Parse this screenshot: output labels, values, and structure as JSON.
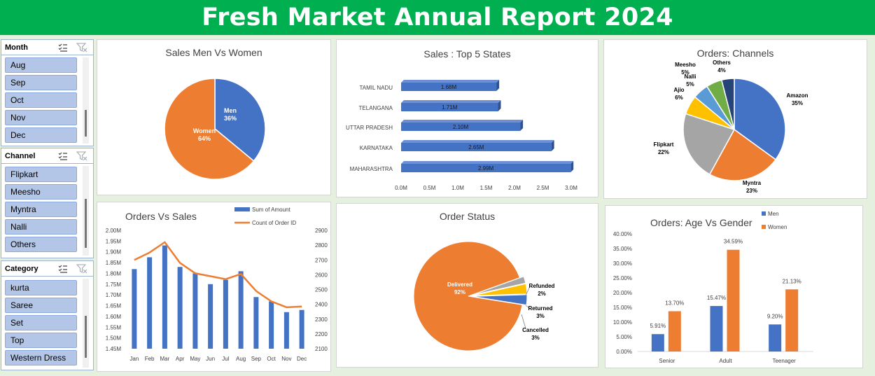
{
  "banner": {
    "title": "Fresh Market Annual Report 2024"
  },
  "slicers": {
    "month": {
      "title": "Month",
      "items": [
        "Aug",
        "Sep",
        "Oct",
        "Nov",
        "Dec"
      ]
    },
    "channel": {
      "title": "Channel",
      "items": [
        "Flipkart",
        "Meesho",
        "Myntra",
        "Nalli",
        "Others"
      ]
    },
    "category": {
      "title": "Category",
      "items": [
        "kurta",
        "Saree",
        "Set",
        "Top",
        "Western Dress"
      ]
    }
  },
  "colors": {
    "blue": "#4472c4",
    "orange": "#ed7d31",
    "gray": "#a5a5a5",
    "yellow": "#ffc000",
    "lightblue": "#5b9bd5",
    "green": "#70ad47",
    "navy": "#264478",
    "banner": "#00b050"
  },
  "chart_data": [
    {
      "id": "men-women",
      "type": "pie",
      "title": "Sales Men Vs Women",
      "slices": [
        {
          "label": "Men",
          "value_label": "36%",
          "value": 36
        },
        {
          "label": "Women",
          "value_label": "64%",
          "value": 64
        }
      ]
    },
    {
      "id": "top-states",
      "type": "bar",
      "orientation": "horizontal",
      "title": "Sales : Top 5 States",
      "categories": [
        "TAMIL NADU",
        "TELANGANA",
        "UTTAR PRADESH",
        "KARNATAKA",
        "MAHARASHTRA"
      ],
      "values": [
        1.68,
        1.71,
        2.1,
        2.65,
        2.99
      ],
      "value_labels": [
        "1.68M",
        "1.71M",
        "2.10M",
        "2.65M",
        "2.99M"
      ],
      "xticks": [
        "0.0M",
        "0.5M",
        "1.0M",
        "1.5M",
        "2.0M",
        "2.5M",
        "3.0M"
      ],
      "xlim": [
        0,
        3.0
      ]
    },
    {
      "id": "channels",
      "type": "pie",
      "title": "Orders: Channels",
      "slices": [
        {
          "label": "Amazon",
          "value_label": "35%",
          "value": 35
        },
        {
          "label": "Myntra",
          "value_label": "23%",
          "value": 23
        },
        {
          "label": "Flipkart",
          "value_label": "22%",
          "value": 22
        },
        {
          "label": "Ajio",
          "value_label": "6%",
          "value": 6
        },
        {
          "label": "Nalli",
          "value_label": "5%",
          "value": 5
        },
        {
          "label": "Meesho",
          "value_label": "5%",
          "value": 5
        },
        {
          "label": "Others",
          "value_label": "4%",
          "value": 4
        }
      ]
    },
    {
      "id": "orders-sales",
      "type": "bar",
      "title": "Orders Vs Sales",
      "categories": [
        "Jan",
        "Feb",
        "Mar",
        "Apr",
        "May",
        "Jun",
        "Jul",
        "Aug",
        "Sep",
        "Oct",
        "Nov",
        "Dec"
      ],
      "series": [
        {
          "name": "Sum of Amount",
          "type": "bar",
          "axis": "left",
          "values": [
            1.82,
            1.875,
            1.93,
            1.83,
            1.8,
            1.75,
            1.77,
            1.81,
            1.69,
            1.67,
            1.62,
            1.63
          ]
        },
        {
          "name": "Count of Order ID",
          "type": "line",
          "axis": "right",
          "values": [
            2700,
            2750,
            2820,
            2680,
            2610,
            2590,
            2570,
            2605,
            2490,
            2420,
            2380,
            2385
          ]
        }
      ],
      "yticks_left": [
        "2.00M",
        "1.95M",
        "1.90M",
        "1.85M",
        "1.80M",
        "1.75M",
        "1.70M",
        "1.65M",
        "1.60M",
        "1.55M",
        "1.50M",
        "1.45M"
      ],
      "ylim_left": [
        1.45,
        2.0
      ],
      "yticks_right": [
        "2900",
        "2800",
        "2700",
        "2600",
        "2500",
        "2400",
        "2300",
        "2200",
        "2100"
      ],
      "ylim_right": [
        2100,
        2900
      ]
    },
    {
      "id": "order-status",
      "type": "pie",
      "title": "Order Status",
      "slices": [
        {
          "label": "Delivered",
          "value_label": "92%",
          "value": 92
        },
        {
          "label": "Refunded",
          "value_label": "2%",
          "value": 2
        },
        {
          "label": "Returned",
          "value_label": "3%",
          "value": 3
        },
        {
          "label": "Cancelled",
          "value_label": "3%",
          "value": 3
        }
      ]
    },
    {
      "id": "age-gender",
      "type": "bar",
      "title": "Orders: Age Vs Gender",
      "categories": [
        "Senior",
        "Adult",
        "Teenager"
      ],
      "series": [
        {
          "name": "Men",
          "values": [
            5.91,
            15.47,
            9.2
          ],
          "value_labels": [
            "5.91%",
            "15.47%",
            "9.20%"
          ]
        },
        {
          "name": "Women",
          "values": [
            13.7,
            34.59,
            21.13
          ],
          "value_labels": [
            "13.70%",
            "34.59%",
            "21.13%"
          ]
        }
      ],
      "yticks": [
        "40.00%",
        "35.00%",
        "30.00%",
        "25.00%",
        "20.00%",
        "15.00%",
        "10.00%",
        "5.00%",
        "0.00%"
      ],
      "ylim": [
        0,
        40
      ]
    }
  ]
}
